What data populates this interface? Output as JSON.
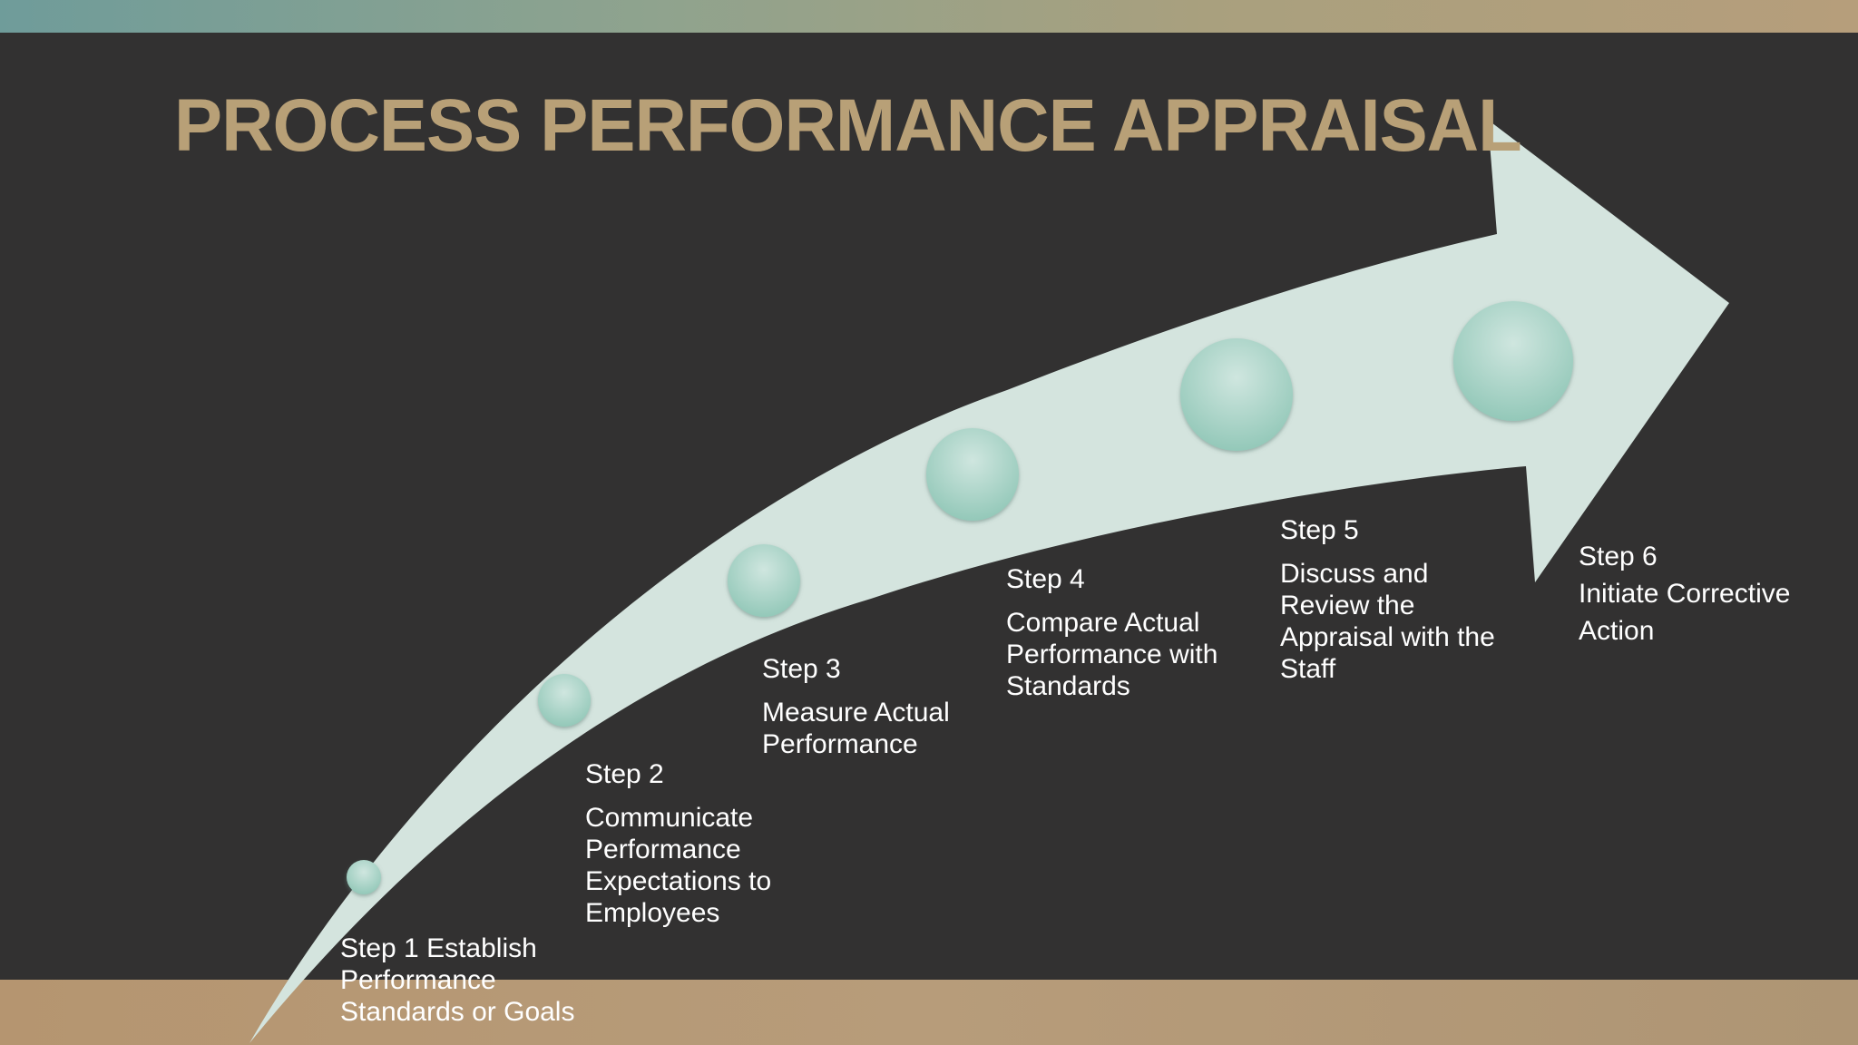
{
  "slide": {
    "title": "PROCESS PERFORMANCE APPRAISAL",
    "colors": {
      "title": "#b8a077",
      "panel": "#323131",
      "arrow": "#d4e4de",
      "circle": "#9dcfc0",
      "text": "#ffffff",
      "frame_top": "#8fa38e",
      "frame_bottom": "#b69a78"
    }
  },
  "steps": [
    {
      "label": "Step 1",
      "text": "Establish Performance Standards or Goals"
    },
    {
      "label": "Step 2",
      "text": "Communicate Performance Expectations to Employees"
    },
    {
      "label": "Step 3",
      "text": "Measure Actual Performance"
    },
    {
      "label": "Step 4",
      "text": "Compare Actual Performance with Standards"
    },
    {
      "label": "Step 5",
      "text": "Discuss and Review the Appraisal with the Staff"
    },
    {
      "label": "Step 6",
      "text": "Initiate Corrective Action"
    }
  ]
}
